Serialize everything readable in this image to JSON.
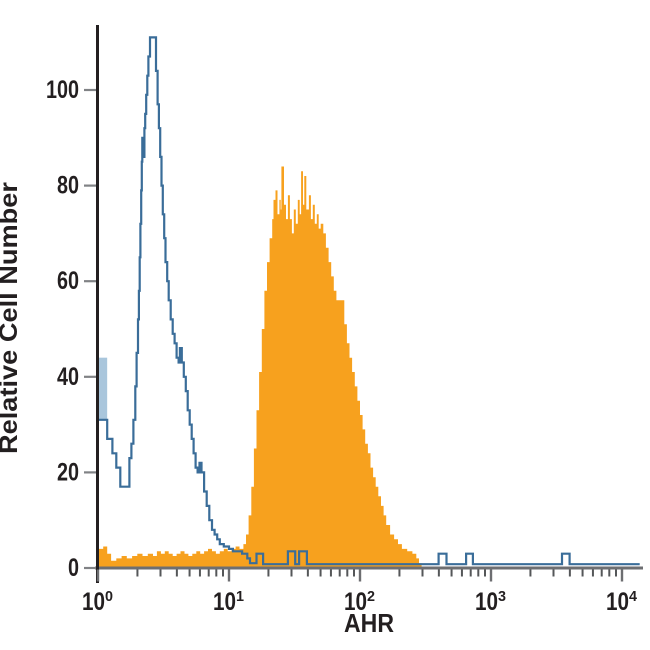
{
  "chart_data": {
    "type": "area",
    "subtype": "flow_cytometry_histogram_overlay",
    "title": "",
    "xlabel": "AHR",
    "ylabel": "Relative Cell Number",
    "x_scale": "log10",
    "xlim_log10": [
      0,
      4.19
    ],
    "ylim": [
      0,
      114
    ],
    "grid": false,
    "legend": "none",
    "y_ticks": [
      0,
      20,
      40,
      60,
      80,
      100
    ],
    "x_ticks": [
      {
        "base": "10",
        "exponent": "0",
        "log10": 0
      },
      {
        "base": "10",
        "exponent": "1",
        "log10": 1
      },
      {
        "base": "10",
        "exponent": "2",
        "log10": 2
      },
      {
        "base": "10",
        "exponent": "3",
        "log10": 3
      },
      {
        "base": "10",
        "exponent": "4",
        "log10": 4
      }
    ],
    "x_minor_ticks_per_decade": [
      2,
      3,
      4,
      5,
      6,
      7,
      8,
      9
    ],
    "colors": {
      "filled_series": "#f7a11e",
      "outline_series": "#3a6d99",
      "outline_series_edge_fill": "#a9c6dc",
      "y_axis": "#231f20",
      "x_axis": "#6d6e71",
      "y_tick": "#808285",
      "x_major_tick": "#6d6e71",
      "x_minor_tick": "#555759",
      "text": "#231f20"
    },
    "series": [
      {
        "name": "orange_filled_histogram",
        "style": "step_filled",
        "points_log10x_count": [
          [
            0.0,
            4
          ],
          [
            0.04,
            4.5
          ],
          [
            0.07,
            3
          ],
          [
            0.1,
            1.5
          ],
          [
            0.14,
            2
          ],
          [
            0.18,
            2.5
          ],
          [
            0.22,
            2
          ],
          [
            0.26,
            2.5
          ],
          [
            0.3,
            3
          ],
          [
            0.34,
            2.5
          ],
          [
            0.38,
            3
          ],
          [
            0.42,
            2.5
          ],
          [
            0.45,
            3.5
          ],
          [
            0.48,
            3
          ],
          [
            0.51,
            3.5
          ],
          [
            0.54,
            3
          ],
          [
            0.57,
            2.5
          ],
          [
            0.6,
            3
          ],
          [
            0.63,
            3.5
          ],
          [
            0.66,
            3
          ],
          [
            0.69,
            2.5
          ],
          [
            0.72,
            3
          ],
          [
            0.75,
            3.5
          ],
          [
            0.78,
            3
          ],
          [
            0.81,
            3.5
          ],
          [
            0.84,
            4
          ],
          [
            0.87,
            3.5
          ],
          [
            0.9,
            3
          ],
          [
            0.93,
            3.5
          ],
          [
            0.96,
            4
          ],
          [
            0.99,
            3.5
          ],
          [
            1.02,
            4
          ],
          [
            1.05,
            4.5
          ],
          [
            1.08,
            4
          ],
          [
            1.11,
            5
          ],
          [
            1.13,
            7
          ],
          [
            1.15,
            11
          ],
          [
            1.17,
            17
          ],
          [
            1.19,
            25
          ],
          [
            1.21,
            33
          ],
          [
            1.23,
            41
          ],
          [
            1.25,
            50
          ],
          [
            1.27,
            58
          ],
          [
            1.29,
            64
          ],
          [
            1.31,
            69
          ],
          [
            1.33,
            73
          ],
          [
            1.34,
            77
          ],
          [
            1.355,
            79
          ],
          [
            1.37,
            74
          ],
          [
            1.385,
            77
          ],
          [
            1.395,
            75
          ],
          [
            1.4,
            84
          ],
          [
            1.42,
            76
          ],
          [
            1.435,
            73
          ],
          [
            1.45,
            78
          ],
          [
            1.465,
            73
          ],
          [
            1.48,
            70
          ],
          [
            1.495,
            75
          ],
          [
            1.51,
            72
          ],
          [
            1.525,
            77
          ],
          [
            1.54,
            74
          ],
          [
            1.55,
            83
          ],
          [
            1.565,
            76
          ],
          [
            1.575,
            82
          ],
          [
            1.59,
            75
          ],
          [
            1.61,
            78
          ],
          [
            1.625,
            73
          ],
          [
            1.64,
            76
          ],
          [
            1.655,
            72
          ],
          [
            1.67,
            74
          ],
          [
            1.685,
            71
          ],
          [
            1.7,
            72
          ],
          [
            1.72,
            70
          ],
          [
            1.74,
            67
          ],
          [
            1.76,
            64
          ],
          [
            1.78,
            61
          ],
          [
            1.8,
            58
          ],
          [
            1.82,
            56
          ],
          [
            1.86,
            56
          ],
          [
            1.88,
            51
          ],
          [
            1.9,
            47
          ],
          [
            1.92,
            44
          ],
          [
            1.94,
            41
          ],
          [
            1.96,
            38
          ],
          [
            1.98,
            35
          ],
          [
            2.0,
            32
          ],
          [
            2.02,
            29
          ],
          [
            2.04,
            26
          ],
          [
            2.06,
            24
          ],
          [
            2.08,
            21
          ],
          [
            2.1,
            19
          ],
          [
            2.12,
            17
          ],
          [
            2.14,
            15
          ],
          [
            2.16,
            13
          ],
          [
            2.18,
            11
          ],
          [
            2.2,
            9
          ],
          [
            2.23,
            7
          ],
          [
            2.26,
            6
          ],
          [
            2.29,
            5
          ],
          [
            2.32,
            4
          ],
          [
            2.36,
            3.5
          ],
          [
            2.4,
            3
          ],
          [
            2.43,
            2
          ],
          [
            2.45,
            1
          ],
          [
            2.47,
            0
          ]
        ]
      },
      {
        "name": "blue_outline_histogram",
        "style": "step_outline",
        "points_log10x_count": [
          [
            0.0,
            31
          ],
          [
            0.07,
            27
          ],
          [
            0.11,
            24
          ],
          [
            0.14,
            21
          ],
          [
            0.17,
            17
          ],
          [
            0.24,
            23
          ],
          [
            0.255,
            26
          ],
          [
            0.27,
            31
          ],
          [
            0.285,
            38
          ],
          [
            0.295,
            45
          ],
          [
            0.305,
            52
          ],
          [
            0.312,
            58
          ],
          [
            0.318,
            65
          ],
          [
            0.324,
            72
          ],
          [
            0.33,
            79
          ],
          [
            0.334,
            85
          ],
          [
            0.338,
            90
          ],
          [
            0.346,
            86
          ],
          [
            0.354,
            92
          ],
          [
            0.36,
            95
          ],
          [
            0.368,
            99
          ],
          [
            0.376,
            103
          ],
          [
            0.385,
            107
          ],
          [
            0.397,
            111
          ],
          [
            0.443,
            104
          ],
          [
            0.455,
            97
          ],
          [
            0.465,
            92
          ],
          [
            0.475,
            86
          ],
          [
            0.485,
            80
          ],
          [
            0.495,
            74
          ],
          [
            0.505,
            69
          ],
          [
            0.515,
            64
          ],
          [
            0.528,
            60
          ],
          [
            0.54,
            56
          ],
          [
            0.555,
            52
          ],
          [
            0.57,
            49
          ],
          [
            0.585,
            47
          ],
          [
            0.6,
            44
          ],
          [
            0.615,
            43
          ],
          [
            0.625,
            46
          ],
          [
            0.64,
            43
          ],
          [
            0.655,
            40
          ],
          [
            0.67,
            37
          ],
          [
            0.685,
            33
          ],
          [
            0.7,
            30
          ],
          [
            0.715,
            27
          ],
          [
            0.73,
            24
          ],
          [
            0.745,
            21
          ],
          [
            0.76,
            20
          ],
          [
            0.775,
            22
          ],
          [
            0.79,
            20
          ],
          [
            0.81,
            16
          ],
          [
            0.83,
            13
          ],
          [
            0.85,
            10
          ],
          [
            0.87,
            8
          ],
          [
            0.89,
            7
          ],
          [
            0.91,
            6
          ],
          [
            0.93,
            5
          ],
          [
            0.96,
            4.5
          ],
          [
            1.0,
            4
          ],
          [
            1.03,
            3.5
          ],
          [
            1.1,
            3
          ],
          [
            1.14,
            2
          ],
          [
            1.16,
            1
          ],
          [
            1.21,
            3
          ],
          [
            1.26,
            0.8
          ],
          [
            1.45,
            3.5
          ],
          [
            1.505,
            0.8
          ],
          [
            1.535,
            3.5
          ],
          [
            1.595,
            0.8
          ],
          [
            2.6,
            3
          ],
          [
            2.66,
            0.8
          ],
          [
            2.81,
            3
          ],
          [
            2.862,
            0.8
          ],
          [
            3.542,
            3
          ],
          [
            3.6,
            0.8
          ],
          [
            4.135,
            0.8
          ]
        ],
        "edge_bar": {
          "log10x_from": 0.006,
          "log10x_to": 0.07,
          "count_from": 31,
          "count_to": 44
        }
      }
    ]
  }
}
